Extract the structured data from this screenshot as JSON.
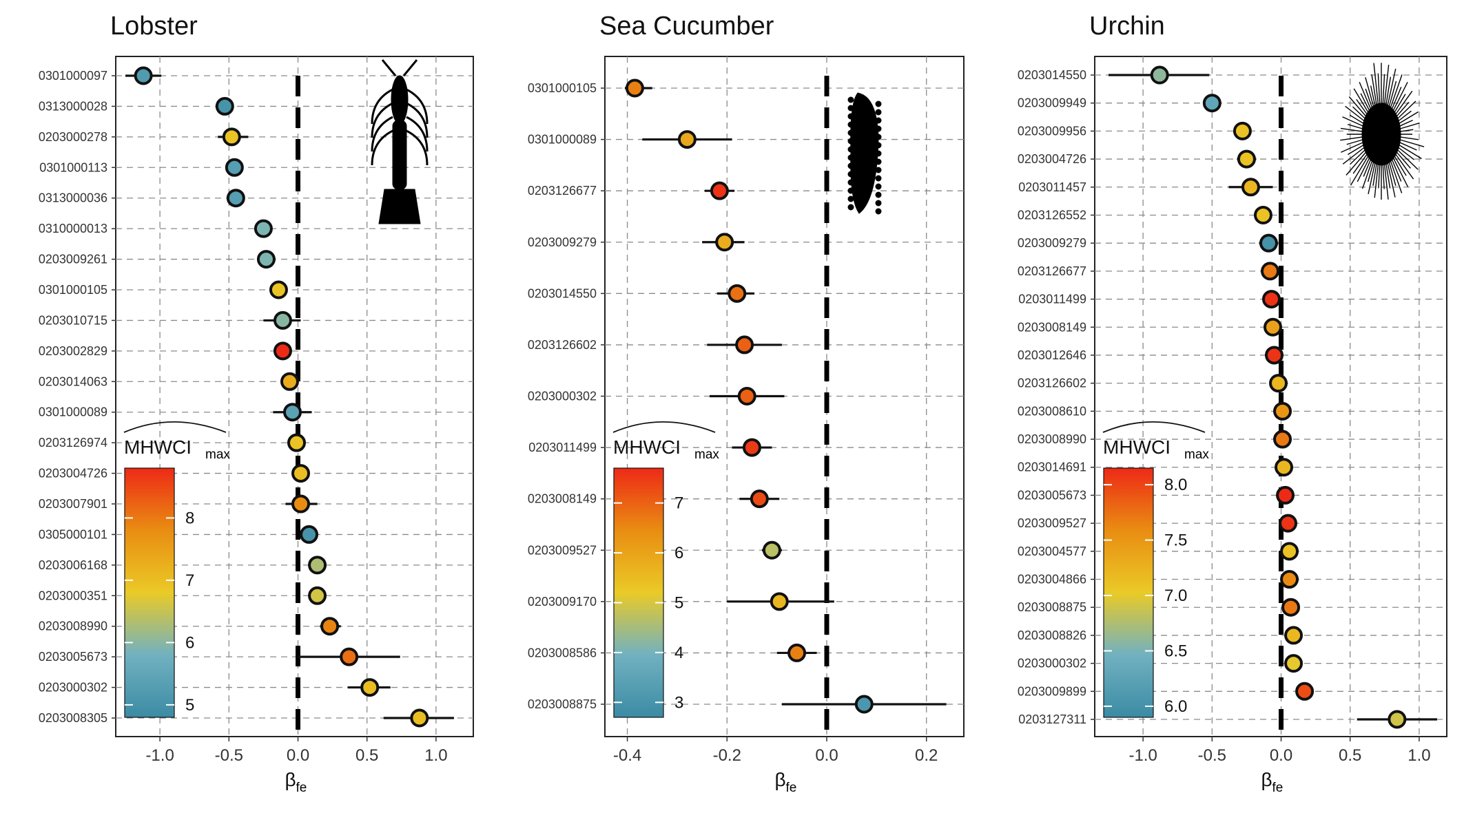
{
  "chart_data": [
    {
      "type": "dot-whisker",
      "title": "Lobster",
      "xlabel": "β",
      "xlabel_sub": "fe",
      "xlim": [
        -1.32,
        1.27
      ],
      "xticks": [
        -1.0,
        -0.5,
        0.0,
        0.5,
        1.0
      ],
      "xtick_labels": [
        "-1.0",
        "-0.5",
        "0.0",
        "0.5",
        "1.0"
      ],
      "reference_line": 0,
      "grid": "dashed",
      "legend": {
        "title": "MHWCI",
        "title_sub": "max",
        "title_hat": true,
        "position": "bottom-left inside",
        "range": [
          4.8,
          8.8
        ],
        "ticks": [
          5,
          6,
          7,
          8
        ],
        "tick_labels": [
          "5",
          "6",
          "7",
          "8"
        ]
      },
      "rows": [
        {
          "label": "0301000097",
          "estimate": -1.12,
          "lower": -1.25,
          "upper": -0.99,
          "color_value": 5.2
        },
        {
          "label": "0313000028",
          "estimate": -0.53,
          "lower": -0.58,
          "upper": -0.48,
          "color_value": 5.0
        },
        {
          "label": "0203000278",
          "estimate": -0.48,
          "lower": -0.58,
          "upper": -0.36,
          "color_value": 6.9
        },
        {
          "label": "0301000113",
          "estimate": -0.46,
          "lower": -0.49,
          "upper": -0.43,
          "color_value": 5.3
        },
        {
          "label": "0313000036",
          "estimate": -0.45,
          "lower": -0.48,
          "upper": -0.42,
          "color_value": 5.3
        },
        {
          "label": "0310000013",
          "estimate": -0.25,
          "lower": -0.28,
          "upper": -0.22,
          "color_value": 5.9
        },
        {
          "label": "0203009261",
          "estimate": -0.23,
          "lower": -0.26,
          "upper": -0.2,
          "color_value": 5.9
        },
        {
          "label": "0301000105",
          "estimate": -0.14,
          "lower": -0.2,
          "upper": -0.08,
          "color_value": 6.9
        },
        {
          "label": "0203010715",
          "estimate": -0.11,
          "lower": -0.25,
          "upper": 0.02,
          "color_value": 6.0
        },
        {
          "label": "0203002829",
          "estimate": -0.11,
          "lower": -0.15,
          "upper": -0.07,
          "color_value": 8.8
        },
        {
          "label": "0203014063",
          "estimate": -0.06,
          "lower": -0.12,
          "upper": 0.0,
          "color_value": 7.3
        },
        {
          "label": "0301000089",
          "estimate": -0.04,
          "lower": -0.18,
          "upper": 0.1,
          "color_value": 5.4
        },
        {
          "label": "0203126974",
          "estimate": -0.01,
          "lower": -0.05,
          "upper": 0.03,
          "color_value": 6.9
        },
        {
          "label": "0203004726",
          "estimate": 0.02,
          "lower": -0.01,
          "upper": 0.05,
          "color_value": 7.0
        },
        {
          "label": "0203007901",
          "estimate": 0.02,
          "lower": -0.09,
          "upper": 0.14,
          "color_value": 7.8
        },
        {
          "label": "0305000101",
          "estimate": 0.08,
          "lower": 0.04,
          "upper": 0.12,
          "color_value": 5.0
        },
        {
          "label": "0203006168",
          "estimate": 0.14,
          "lower": 0.1,
          "upper": 0.18,
          "color_value": 6.3
        },
        {
          "label": "0203000351",
          "estimate": 0.14,
          "lower": 0.1,
          "upper": 0.18,
          "color_value": 6.6
        },
        {
          "label": "0203008990",
          "estimate": 0.23,
          "lower": 0.16,
          "upper": 0.31,
          "color_value": 7.9
        },
        {
          "label": "0203005673",
          "estimate": 0.37,
          "lower": 0.0,
          "upper": 0.74,
          "color_value": 8.1
        },
        {
          "label": "0203000302",
          "estimate": 0.52,
          "lower": 0.36,
          "upper": 0.67,
          "color_value": 7.0
        },
        {
          "label": "0203008305",
          "estimate": 0.88,
          "lower": 0.62,
          "upper": 1.13,
          "color_value": 7.0
        }
      ]
    },
    {
      "type": "dot-whisker",
      "title": "Sea Cucumber",
      "xlabel": "β",
      "xlabel_sub": "fe",
      "xlim": [
        -0.445,
        0.275
      ],
      "xticks": [
        -0.4,
        -0.2,
        0.0,
        0.2
      ],
      "xtick_labels": [
        "-0.4",
        "-0.2",
        "0.0",
        "0.2"
      ],
      "reference_line": 0,
      "grid": "dashed",
      "legend": {
        "title": "MHWCI",
        "title_sub": "max",
        "title_hat": true,
        "position": "bottom-left inside",
        "range": [
          2.7,
          7.7
        ],
        "ticks": [
          3,
          4,
          5,
          6,
          7
        ],
        "tick_labels": [
          "3",
          "4",
          "5",
          "6",
          "7"
        ]
      },
      "rows": [
        {
          "label": "0301000105",
          "estimate": -0.385,
          "lower": -0.405,
          "upper": -0.35,
          "color_value": 6.6
        },
        {
          "label": "0301000089",
          "estimate": -0.28,
          "lower": -0.37,
          "upper": -0.19,
          "color_value": 5.9
        },
        {
          "label": "0203126677",
          "estimate": -0.215,
          "lower": -0.245,
          "upper": -0.185,
          "color_value": 7.6
        },
        {
          "label": "0203009279",
          "estimate": -0.205,
          "lower": -0.25,
          "upper": -0.165,
          "color_value": 5.8
        },
        {
          "label": "0203014550",
          "estimate": -0.18,
          "lower": -0.22,
          "upper": -0.145,
          "color_value": 6.8
        },
        {
          "label": "0203126602",
          "estimate": -0.165,
          "lower": -0.24,
          "upper": -0.09,
          "color_value": 7.0
        },
        {
          "label": "0203000302",
          "estimate": -0.16,
          "lower": -0.235,
          "upper": -0.085,
          "color_value": 7.0
        },
        {
          "label": "0203011499",
          "estimate": -0.15,
          "lower": -0.19,
          "upper": -0.11,
          "color_value": 7.5
        },
        {
          "label": "0203008149",
          "estimate": -0.135,
          "lower": -0.175,
          "upper": -0.095,
          "color_value": 7.3
        },
        {
          "label": "0203009527",
          "estimate": -0.11,
          "lower": -0.13,
          "upper": -0.09,
          "color_value": 4.7
        },
        {
          "label": "0203009170",
          "estimate": -0.095,
          "lower": -0.2,
          "upper": 0.015,
          "color_value": 5.6
        },
        {
          "label": "0203008586",
          "estimate": -0.06,
          "lower": -0.1,
          "upper": -0.02,
          "color_value": 6.6
        },
        {
          "label": "0203008875",
          "estimate": 0.075,
          "lower": -0.09,
          "upper": 0.24,
          "color_value": 3.1
        }
      ]
    },
    {
      "type": "dot-whisker",
      "title": "Urchin",
      "xlabel": "β",
      "xlabel_sub": "fe",
      "xlim": [
        -1.35,
        1.2
      ],
      "xticks": [
        -1.0,
        -0.5,
        0.0,
        0.5,
        1.0
      ],
      "xtick_labels": [
        "-1.0",
        "-0.5",
        "0.0",
        "0.5",
        "1.0"
      ],
      "reference_line": 0,
      "grid": "dashed",
      "legend": {
        "title": "MHWCI",
        "title_sub": "max",
        "title_hat": true,
        "position": "bottom-left inside",
        "range": [
          5.9,
          8.15
        ],
        "ticks": [
          6.0,
          6.5,
          7.0,
          7.5,
          8.0
        ],
        "tick_labels": [
          "6.0",
          "6.5",
          "7.0",
          "7.5",
          "8.0"
        ]
      },
      "rows": [
        {
          "label": "0203014550",
          "estimate": -0.88,
          "lower": -1.25,
          "upper": -0.52,
          "color_value": 6.6
        },
        {
          "label": "0203009949",
          "estimate": -0.5,
          "lower": -0.56,
          "upper": -0.44,
          "color_value": 6.3
        },
        {
          "label": "0203009956",
          "estimate": -0.28,
          "lower": -0.33,
          "upper": -0.23,
          "color_value": 7.1
        },
        {
          "label": "0203004726",
          "estimate": -0.25,
          "lower": -0.32,
          "upper": -0.18,
          "color_value": 7.1
        },
        {
          "label": "0203011457",
          "estimate": -0.22,
          "lower": -0.38,
          "upper": -0.06,
          "color_value": 7.2
        },
        {
          "label": "0203126552",
          "estimate": -0.13,
          "lower": -0.15,
          "upper": -0.11,
          "color_value": 7.1
        },
        {
          "label": "0203009279",
          "estimate": -0.09,
          "lower": -0.16,
          "upper": -0.02,
          "color_value": 6.0
        },
        {
          "label": "0203126677",
          "estimate": -0.08,
          "lower": -0.13,
          "upper": -0.03,
          "color_value": 7.7
        },
        {
          "label": "0203011499",
          "estimate": -0.07,
          "lower": -0.1,
          "upper": -0.04,
          "color_value": 8.1
        },
        {
          "label": "0203008149",
          "estimate": -0.06,
          "lower": -0.09,
          "upper": -0.03,
          "color_value": 7.4
        },
        {
          "label": "0203012646",
          "estimate": -0.05,
          "lower": -0.08,
          "upper": -0.02,
          "color_value": 8.1
        },
        {
          "label": "0203126602",
          "estimate": -0.02,
          "lower": -0.05,
          "upper": 0.01,
          "color_value": 7.2
        },
        {
          "label": "0203008610",
          "estimate": 0.01,
          "lower": -0.02,
          "upper": 0.04,
          "color_value": 7.5
        },
        {
          "label": "0203008990",
          "estimate": 0.01,
          "lower": -0.02,
          "upper": 0.04,
          "color_value": 7.7
        },
        {
          "label": "0203014691",
          "estimate": 0.02,
          "lower": -0.01,
          "upper": 0.05,
          "color_value": 7.2
        },
        {
          "label": "0203005673",
          "estimate": 0.03,
          "lower": 0.0,
          "upper": 0.06,
          "color_value": 8.15
        },
        {
          "label": "0203009527",
          "estimate": 0.05,
          "lower": 0.02,
          "upper": 0.08,
          "color_value": 8.1
        },
        {
          "label": "0203004577",
          "estimate": 0.06,
          "lower": 0.03,
          "upper": 0.09,
          "color_value": 7.1
        },
        {
          "label": "0203004866",
          "estimate": 0.06,
          "lower": 0.03,
          "upper": 0.09,
          "color_value": 7.6
        },
        {
          "label": "0203008875",
          "estimate": 0.07,
          "lower": 0.03,
          "upper": 0.11,
          "color_value": 7.7
        },
        {
          "label": "0203008826",
          "estimate": 0.09,
          "lower": 0.04,
          "upper": 0.14,
          "color_value": 7.2
        },
        {
          "label": "0203000302",
          "estimate": 0.09,
          "lower": 0.05,
          "upper": 0.13,
          "color_value": 7.0
        },
        {
          "label": "0203009899",
          "estimate": 0.17,
          "lower": 0.11,
          "upper": 0.23,
          "color_value": 7.95
        },
        {
          "label": "0203127311",
          "estimate": 0.84,
          "lower": 0.55,
          "upper": 1.13,
          "color_value": 6.9
        }
      ]
    }
  ],
  "colors": {
    "palette": [
      "#3b8ba4",
      "#71b1c0",
      "#eaca27",
      "#e98d12",
      "#ed2a16"
    ],
    "grid": "#8a8a8a",
    "frame": "#222222",
    "point_outline": "#111111",
    "whisker": "#111111",
    "reference_line": "#000000"
  },
  "silhouettes": [
    "lobster-silhouette",
    "sea-cucumber-silhouette",
    "urchin-silhouette"
  ]
}
